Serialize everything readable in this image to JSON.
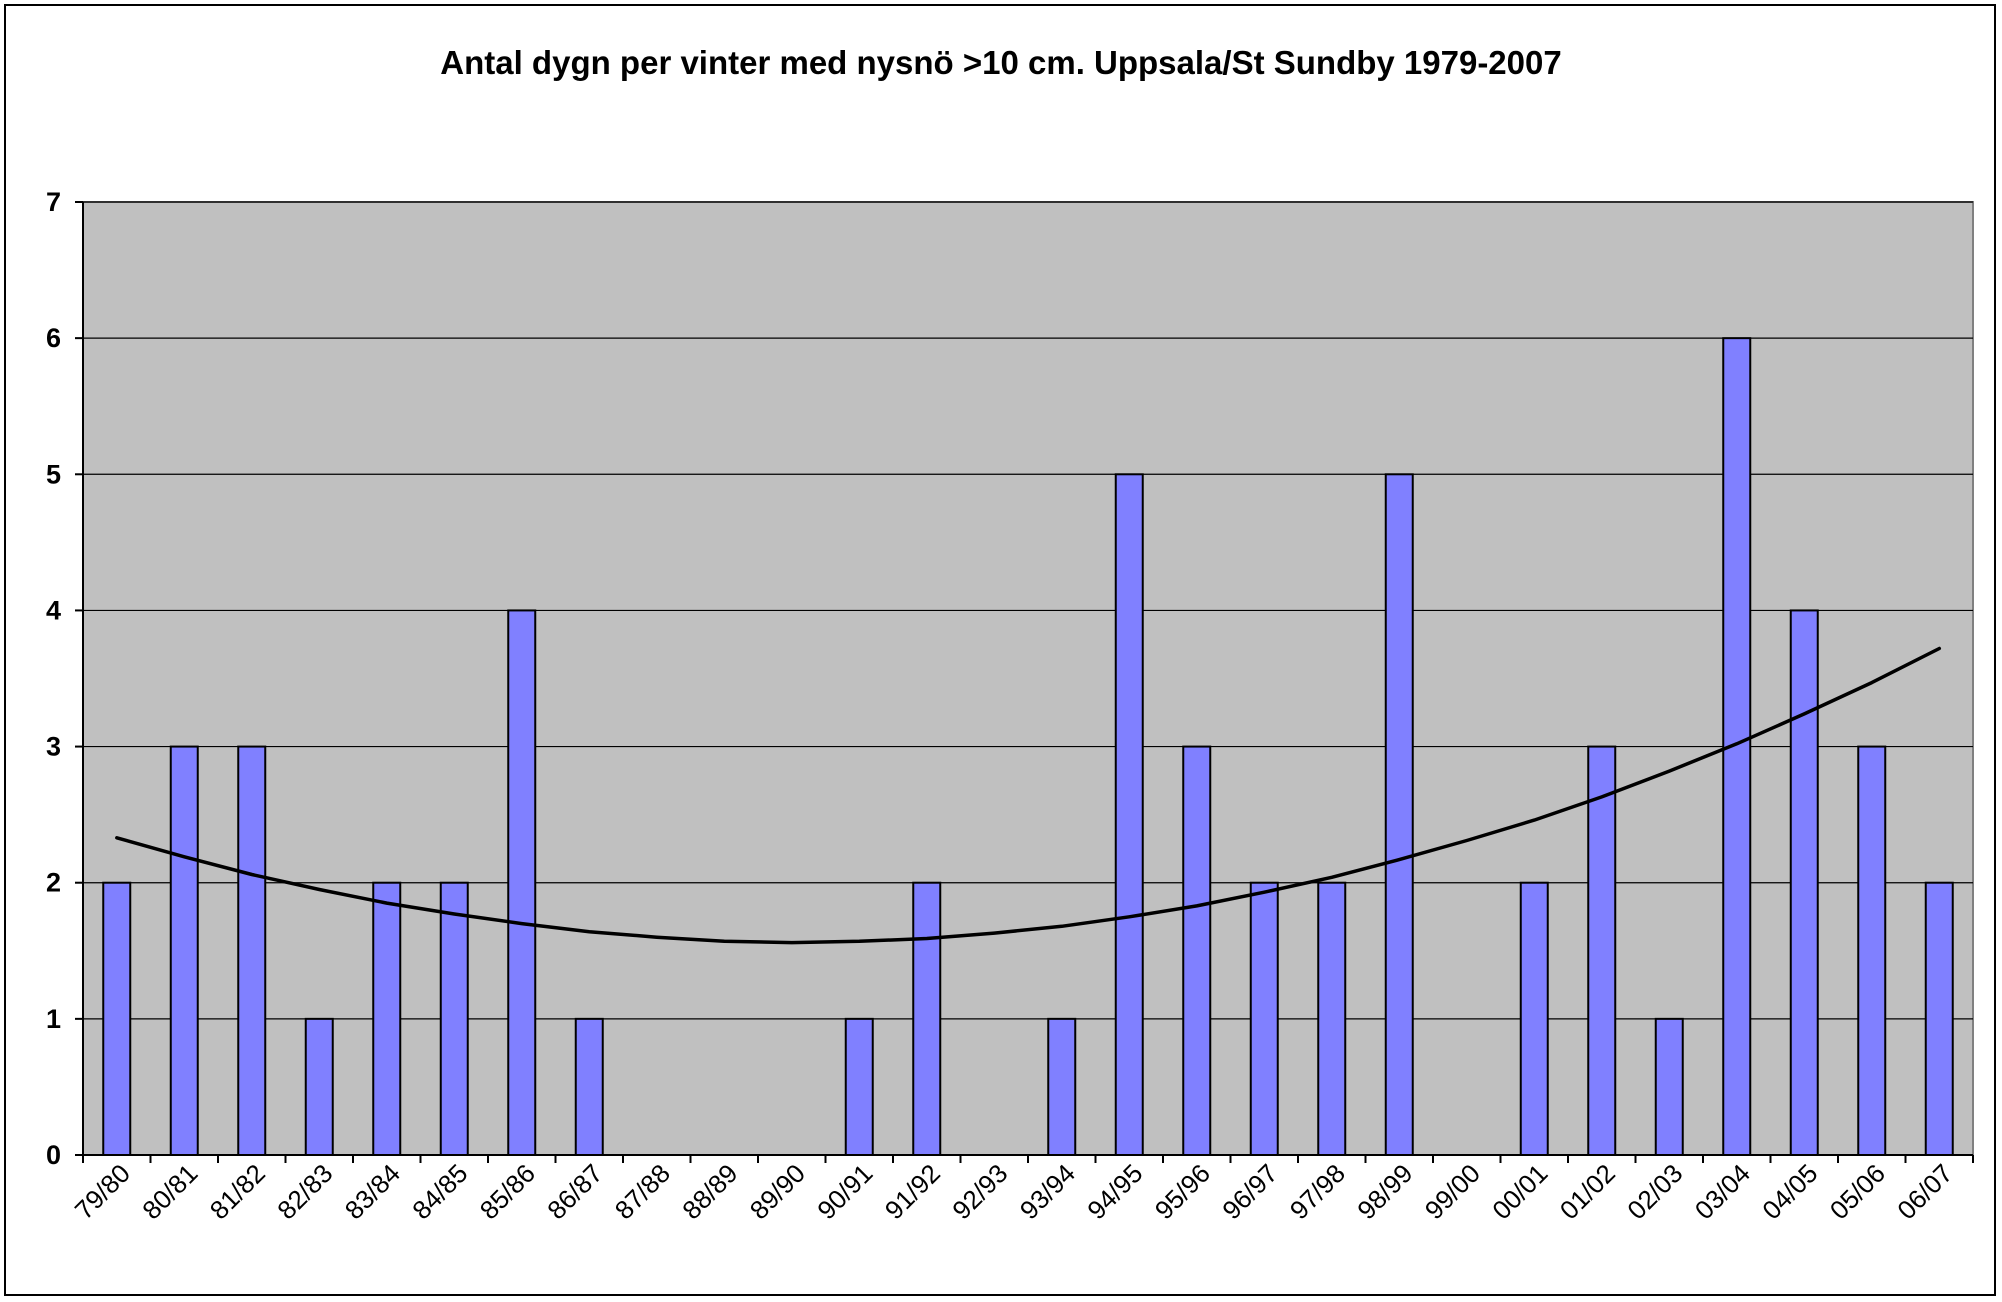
{
  "chart_data": {
    "type": "bar",
    "title": "Antal dygn per vinter med nysnö >10 cm. Uppsala/St Sundby 1979-2007",
    "xlabel": "",
    "ylabel": "",
    "ylim": [
      0,
      7
    ],
    "yticks": [
      "0",
      "1",
      "2",
      "3",
      "4",
      "5",
      "6",
      "7"
    ],
    "grid": true,
    "legend": "none",
    "categories": [
      "79/80",
      "80/81",
      "81/82",
      "82/83",
      "83/84",
      "84/85",
      "85/86",
      "86/87",
      "87/88",
      "88/89",
      "89/90",
      "90/91",
      "91/92",
      "92/93",
      "93/94",
      "94/95",
      "95/96",
      "96/97",
      "97/98",
      "98/99",
      "99/00",
      "00/01",
      "01/02",
      "02/03",
      "03/04",
      "04/05",
      "05/06",
      "06/07"
    ],
    "series": [
      {
        "values": [
          2,
          3,
          3,
          1,
          2,
          2,
          4,
          1,
          0,
          0,
          0,
          1,
          2,
          0,
          1,
          5,
          3,
          2,
          2,
          5,
          0,
          2,
          3,
          1,
          6,
          4,
          3,
          2
        ]
      }
    ],
    "trendline": {
      "type": "polynomial",
      "values": [
        2.33,
        2.19,
        2.06,
        1.95,
        1.85,
        1.77,
        1.7,
        1.64,
        1.6,
        1.57,
        1.56,
        1.57,
        1.59,
        1.63,
        1.68,
        1.75,
        1.83,
        1.93,
        2.04,
        2.17,
        2.31,
        2.46,
        2.63,
        2.82,
        3.02,
        3.24,
        3.47,
        3.72
      ]
    },
    "colors": {
      "bar_fill": "#8080ff",
      "bar_stroke": "#000000",
      "plot_background": "#c0c0c0",
      "gridline": "#000000",
      "trendline": "#000000"
    }
  }
}
